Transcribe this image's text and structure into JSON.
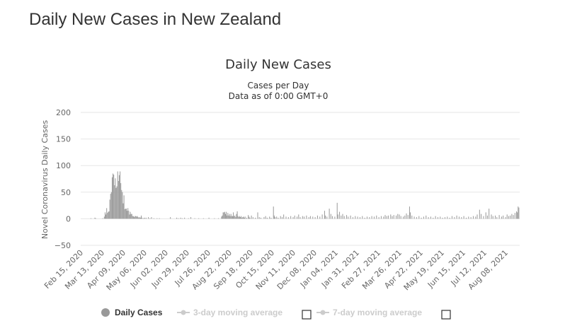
{
  "page": {
    "title": "Daily New Cases in New Zealand"
  },
  "chart_data": {
    "type": "bar",
    "title": "Daily New Cases",
    "subtitle": "Cases per Day",
    "subtitle2": "Data as of 0:00 GMT+0",
    "ylabel": "Novel Coronavirus Daily Cases",
    "xlabel": "",
    "ylim": [
      -50,
      200
    ],
    "yticks": [
      200,
      150,
      100,
      50,
      0,
      -50
    ],
    "grid": true,
    "x_tick_labels": [
      "Feb 15, 2020",
      "Mar 13, 2020",
      "Apr 09, 2020",
      "May 06, 2020",
      "Jun 02, 2020",
      "Jun 29, 2020",
      "Jul 26, 2020",
      "Aug 22, 2020",
      "Sep 18, 2020",
      "Oct 15, 2020",
      "Nov 11, 2020",
      "Dec 08, 2020",
      "Jan 04, 2021",
      "Jan 31, 2021",
      "Feb 27, 2021",
      "Mar 26, 2021",
      "Apr 22, 2021",
      "May 19, 2021",
      "Jun 15, 2021",
      "Jul 12, 2021",
      "Aug 08, 2021"
    ],
    "x_start": "Feb 15, 2020",
    "x_end": "Aug 26, 2021",
    "colors": {
      "daily": "#999999",
      "ma3": "#cccccc",
      "ma7": "#cccccc"
    },
    "legend": [
      {
        "name": "Daily Cases",
        "active": true
      },
      {
        "name": "3-day moving average",
        "active": false
      },
      {
        "name": "7-day moving average",
        "active": false
      }
    ],
    "series": [
      {
        "name": "Daily Cases",
        "points": [
          [
            "Feb 28, 2020",
            1
          ],
          [
            "Mar 04, 2020",
            2
          ],
          [
            "Mar 05, 2020",
            1
          ],
          [
            "Mar 14, 2020",
            1
          ],
          [
            "Mar 16, 2020",
            4
          ],
          [
            "Mar 17, 2020",
            12
          ],
          [
            "Mar 18, 2020",
            8
          ],
          [
            "Mar 19, 2020",
            20
          ],
          [
            "Mar 20, 2020",
            11
          ],
          [
            "Mar 21, 2020",
            13
          ],
          [
            "Mar 22, 2020",
            14
          ],
          [
            "Mar 23, 2020",
            36
          ],
          [
            "Mar 24, 2020",
            47
          ],
          [
            "Mar 25, 2020",
            50
          ],
          [
            "Mar 26, 2020",
            78
          ],
          [
            "Mar 27, 2020",
            85
          ],
          [
            "Mar 28, 2020",
            83
          ],
          [
            "Mar 29, 2020",
            63
          ],
          [
            "Mar 30, 2020",
            76
          ],
          [
            "Mar 31, 2020",
            58
          ],
          [
            "Apr 01, 2020",
            61
          ],
          [
            "Apr 02, 2020",
            89
          ],
          [
            "Apr 03, 2020",
            71
          ],
          [
            "Apr 04, 2020",
            82
          ],
          [
            "Apr 05, 2020",
            89
          ],
          [
            "Apr 06, 2020",
            67
          ],
          [
            "Apr 07, 2020",
            54
          ],
          [
            "Apr 08, 2020",
            50
          ],
          [
            "Apr 09, 2020",
            29
          ],
          [
            "Apr 10, 2020",
            44
          ],
          [
            "Apr 11, 2020",
            18
          ],
          [
            "Apr 12, 2020",
            19
          ],
          [
            "Apr 13, 2020",
            19
          ],
          [
            "Apr 14, 2020",
            15
          ],
          [
            "Apr 15, 2020",
            20
          ],
          [
            "Apr 16, 2020",
            15
          ],
          [
            "Apr 17, 2020",
            8
          ],
          [
            "Apr 18, 2020",
            13
          ],
          [
            "Apr 19, 2020",
            9
          ],
          [
            "Apr 20, 2020",
            9
          ],
          [
            "Apr 21, 2020",
            5
          ],
          [
            "Apr 22, 2020",
            5
          ],
          [
            "Apr 23, 2020",
            3
          ],
          [
            "Apr 24, 2020",
            5
          ],
          [
            "Apr 25, 2020",
            5
          ],
          [
            "Apr 26, 2020",
            4
          ],
          [
            "Apr 27, 2020",
            5
          ],
          [
            "Apr 28, 2020",
            3
          ],
          [
            "Apr 29, 2020",
            2
          ],
          [
            "Apr 30, 2020",
            3
          ],
          [
            "May 01, 2020",
            2
          ],
          [
            "May 02, 2020",
            6
          ],
          [
            "May 03, 2020",
            2
          ],
          [
            "May 05, 2020",
            1
          ],
          [
            "May 06, 2020",
            2
          ],
          [
            "May 08, 2020",
            2
          ],
          [
            "May 11, 2020",
            3
          ],
          [
            "May 13, 2020",
            1
          ],
          [
            "May 15, 2020",
            3
          ],
          [
            "May 18, 2020",
            1
          ],
          [
            "May 22, 2020",
            1
          ],
          [
            "May 25, 2020",
            1
          ],
          [
            "Jun 08, 2020",
            3
          ],
          [
            "Jun 16, 2020",
            2
          ],
          [
            "Jun 18, 2020",
            1
          ],
          [
            "Jun 21, 2020",
            2
          ],
          [
            "Jun 23, 2020",
            1
          ],
          [
            "Jun 26, 2020",
            2
          ],
          [
            "Jul 01, 2020",
            1
          ],
          [
            "Jul 04, 2020",
            3
          ],
          [
            "Jul 09, 2020",
            1
          ],
          [
            "Jul 14, 2020",
            1
          ],
          [
            "Jul 20, 2020",
            1
          ],
          [
            "Jul 27, 2020",
            2
          ],
          [
            "Aug 03, 2020",
            1
          ],
          [
            "Aug 08, 2020",
            1
          ],
          [
            "Aug 12, 2020",
            4
          ],
          [
            "Aug 13, 2020",
            6
          ],
          [
            "Aug 14, 2020",
            12
          ],
          [
            "Aug 15, 2020",
            12
          ],
          [
            "Aug 16, 2020",
            13
          ],
          [
            "Aug 17, 2020",
            9
          ],
          [
            "Aug 18, 2020",
            13
          ],
          [
            "Aug 19, 2020",
            6
          ],
          [
            "Aug 20, 2020",
            11
          ],
          [
            "Aug 21, 2020",
            6
          ],
          [
            "Aug 22, 2020",
            9
          ],
          [
            "Aug 23, 2020",
            5
          ],
          [
            "Aug 24, 2020",
            9
          ],
          [
            "Aug 25, 2020",
            5
          ],
          [
            "Aug 26, 2020",
            5
          ],
          [
            "Aug 27, 2020",
            12
          ],
          [
            "Aug 28, 2020",
            5
          ],
          [
            "Aug 29, 2020",
            6
          ],
          [
            "Aug 30, 2020",
            3
          ],
          [
            "Aug 31, 2020",
            9
          ],
          [
            "Sep 01, 2020",
            14
          ],
          [
            "Sep 02, 2020",
            5
          ],
          [
            "Sep 03, 2020",
            3
          ],
          [
            "Sep 04, 2020",
            5
          ],
          [
            "Sep 05, 2020",
            3
          ],
          [
            "Sep 06, 2020",
            5
          ],
          [
            "Sep 07, 2020",
            2
          ],
          [
            "Sep 08, 2020",
            3
          ],
          [
            "Sep 09, 2020",
            4
          ],
          [
            "Sep 10, 2020",
            2
          ],
          [
            "Sep 11, 2020",
            4
          ],
          [
            "Sep 13, 2020",
            2
          ],
          [
            "Sep 15, 2020",
            7
          ],
          [
            "Sep 16, 2020",
            4
          ],
          [
            "Sep 17, 2020",
            2
          ],
          [
            "Sep 19, 2020",
            6
          ],
          [
            "Sep 21, 2020",
            3
          ],
          [
            "Sep 24, 2020",
            2
          ],
          [
            "Sep 27, 2020",
            12
          ],
          [
            "Sep 29, 2020",
            3
          ],
          [
            "Oct 01, 2020",
            2
          ],
          [
            "Oct 05, 2020",
            3
          ],
          [
            "Oct 07, 2020",
            5
          ],
          [
            "Oct 09, 2020",
            2
          ],
          [
            "Oct 12, 2020",
            4
          ],
          [
            "Oct 14, 2020",
            2
          ],
          [
            "Oct 17, 2020",
            23
          ],
          [
            "Oct 18, 2020",
            6
          ],
          [
            "Oct 19, 2020",
            3
          ],
          [
            "Oct 21, 2020",
            4
          ],
          [
            "Oct 23, 2020",
            2
          ],
          [
            "Oct 26, 2020",
            5
          ],
          [
            "Oct 28, 2020",
            3
          ],
          [
            "Oct 30, 2020",
            8
          ],
          [
            "Nov 02, 2020",
            4
          ],
          [
            "Nov 05, 2020",
            3
          ],
          [
            "Nov 08, 2020",
            5
          ],
          [
            "Nov 11, 2020",
            3
          ],
          [
            "Nov 13, 2020",
            6
          ],
          [
            "Nov 16, 2020",
            4
          ],
          [
            "Nov 18, 2020",
            8
          ],
          [
            "Nov 20, 2020",
            3
          ],
          [
            "Nov 23, 2020",
            5
          ],
          [
            "Nov 25, 2020",
            4
          ],
          [
            "Nov 28, 2020",
            6
          ],
          [
            "Dec 01, 2020",
            3
          ],
          [
            "Dec 03, 2020",
            5
          ],
          [
            "Dec 06, 2020",
            4
          ],
          [
            "Dec 09, 2020",
            3
          ],
          [
            "Dec 12, 2020",
            6
          ],
          [
            "Dec 15, 2020",
            4
          ],
          [
            "Dec 18, 2020",
            8
          ],
          [
            "Dec 21, 2020",
            15
          ],
          [
            "Dec 22, 2020",
            6
          ],
          [
            "Dec 24, 2020",
            4
          ],
          [
            "Dec 27, 2020",
            19
          ],
          [
            "Dec 29, 2020",
            9
          ],
          [
            "Dec 31, 2020",
            5
          ],
          [
            "Jan 03, 2021",
            4
          ],
          [
            "Jan 06, 2021",
            30
          ],
          [
            "Jan 07, 2021",
            8
          ],
          [
            "Jan 09, 2021",
            13
          ],
          [
            "Jan 11, 2021",
            6
          ],
          [
            "Jan 13, 2021",
            9
          ],
          [
            "Jan 15, 2021",
            5
          ],
          [
            "Jan 18, 2021",
            7
          ],
          [
            "Jan 20, 2021",
            4
          ],
          [
            "Jan 23, 2021",
            6
          ],
          [
            "Jan 26, 2021",
            3
          ],
          [
            "Jan 29, 2021",
            5
          ],
          [
            "Feb 01, 2021",
            4
          ],
          [
            "Feb 04, 2021",
            3
          ],
          [
            "Feb 07, 2021",
            5
          ],
          [
            "Feb 10, 2021",
            2
          ],
          [
            "Feb 13, 2021",
            4
          ],
          [
            "Feb 16, 2021",
            3
          ],
          [
            "Feb 19, 2021",
            5
          ],
          [
            "Feb 22, 2021",
            4
          ],
          [
            "Feb 25, 2021",
            6
          ],
          [
            "Feb 28, 2021",
            3
          ],
          [
            "Mar 03, 2021",
            5
          ],
          [
            "Mar 06, 2021",
            4
          ],
          [
            "Mar 08, 2021",
            7
          ],
          [
            "Mar 10, 2021",
            5
          ],
          [
            "Mar 12, 2021",
            6
          ],
          [
            "Mar 15, 2021",
            8
          ],
          [
            "Mar 17, 2021",
            5
          ],
          [
            "Mar 19, 2021",
            7
          ],
          [
            "Mar 22, 2021",
            6
          ],
          [
            "Mar 24, 2021",
            9
          ],
          [
            "Mar 26, 2021",
            8
          ],
          [
            "Mar 28, 2021",
            5
          ],
          [
            "Mar 31, 2021",
            4
          ],
          [
            "Apr 02, 2021",
            6
          ],
          [
            "Apr 04, 2021",
            10
          ],
          [
            "Apr 06, 2021",
            7
          ],
          [
            "Apr 08, 2021",
            23
          ],
          [
            "Apr 09, 2021",
            12
          ],
          [
            "Apr 11, 2021",
            6
          ],
          [
            "Apr 14, 2021",
            4
          ],
          [
            "Apr 17, 2021",
            3
          ],
          [
            "Apr 20, 2021",
            5
          ],
          [
            "Apr 23, 2021",
            2
          ],
          [
            "Apr 26, 2021",
            4
          ],
          [
            "Apr 29, 2021",
            6
          ],
          [
            "May 02, 2021",
            3
          ],
          [
            "May 05, 2021",
            4
          ],
          [
            "May 08, 2021",
            2
          ],
          [
            "May 11, 2021",
            5
          ],
          [
            "May 14, 2021",
            3
          ],
          [
            "May 17, 2021",
            4
          ],
          [
            "May 20, 2021",
            2
          ],
          [
            "May 23, 2021",
            3
          ],
          [
            "May 26, 2021",
            4
          ],
          [
            "May 29, 2021",
            2
          ],
          [
            "Jun 01, 2021",
            5
          ],
          [
            "Jun 04, 2021",
            3
          ],
          [
            "Jun 07, 2021",
            6
          ],
          [
            "Jun 10, 2021",
            4
          ],
          [
            "Jun 13, 2021",
            3
          ],
          [
            "Jun 16, 2021",
            5
          ],
          [
            "Jun 19, 2021",
            2
          ],
          [
            "Jun 22, 2021",
            4
          ],
          [
            "Jun 25, 2021",
            3
          ],
          [
            "Jun 28, 2021",
            5
          ],
          [
            "Jul 01, 2021",
            4
          ],
          [
            "Jul 03, 2021",
            8
          ],
          [
            "Jul 06, 2021",
            17
          ],
          [
            "Jul 08, 2021",
            9
          ],
          [
            "Jul 11, 2021",
            5
          ],
          [
            "Jul 14, 2021",
            12
          ],
          [
            "Jul 16, 2021",
            6
          ],
          [
            "Jul 18, 2021",
            19
          ],
          [
            "Jul 21, 2021",
            8
          ],
          [
            "Jul 23, 2021",
            5
          ],
          [
            "Jul 26, 2021",
            6
          ],
          [
            "Jul 28, 2021",
            3
          ],
          [
            "Jul 31, 2021",
            7
          ],
          [
            "Aug 03, 2021",
            4
          ],
          [
            "Aug 05, 2021",
            6
          ],
          [
            "Aug 08, 2021",
            3
          ],
          [
            "Aug 10, 2021",
            8
          ],
          [
            "Aug 12, 2021",
            5
          ],
          [
            "Aug 14, 2021",
            6
          ],
          [
            "Aug 16, 2021",
            9
          ],
          [
            "Aug 18, 2021",
            7
          ],
          [
            "Aug 20, 2021",
            11
          ],
          [
            "Aug 22, 2021",
            14
          ],
          [
            "Aug 23, 2021",
            12
          ],
          [
            "Aug 24, 2021",
            23
          ],
          [
            "Aug 25, 2021",
            21
          ]
        ]
      }
    ]
  }
}
